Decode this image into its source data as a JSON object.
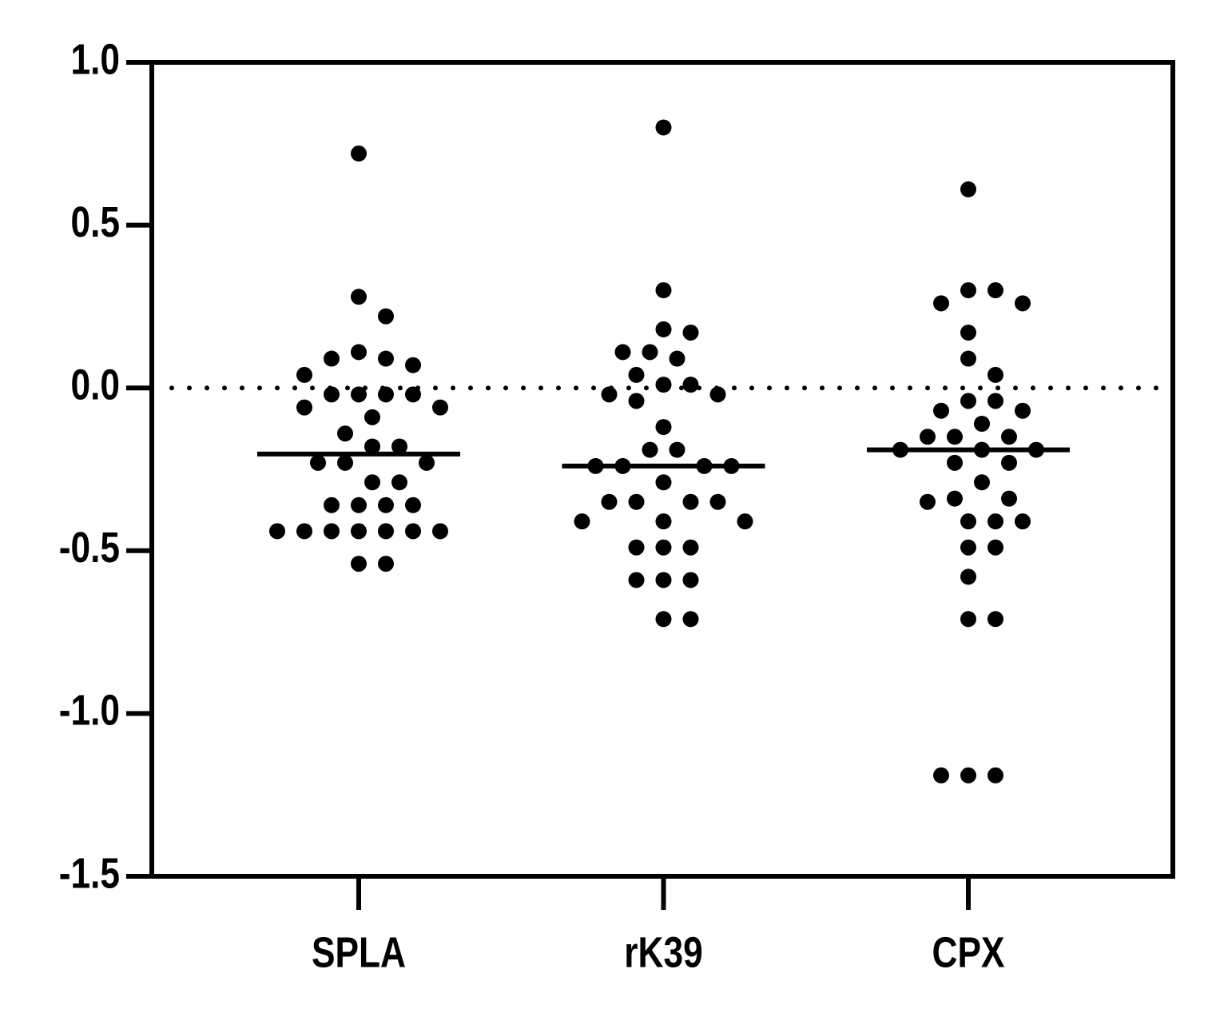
{
  "chart_data": {
    "type": "dotplot",
    "categories": [
      "SPLA",
      "rK39",
      "CPX"
    ],
    "values": [
      [
        0.72,
        0.28,
        0.22,
        0.11,
        0.09,
        0.09,
        0.07,
        0.04,
        -0.02,
        -0.02,
        -0.02,
        -0.02,
        -0.06,
        -0.06,
        -0.09,
        -0.14,
        -0.18,
        -0.18,
        -0.23,
        -0.23,
        -0.23,
        -0.29,
        -0.29,
        -0.36,
        -0.36,
        -0.36,
        -0.36,
        -0.44,
        -0.44,
        -0.44,
        -0.44,
        -0.44,
        -0.44,
        -0.44,
        -0.54,
        -0.54
      ],
      [
        0.8,
        0.3,
        0.18,
        0.17,
        0.11,
        0.11,
        0.09,
        0.04,
        0.01,
        0.01,
        -0.02,
        -0.02,
        -0.04,
        -0.12,
        -0.19,
        -0.19,
        -0.24,
        -0.24,
        -0.24,
        -0.24,
        -0.29,
        -0.35,
        -0.35,
        -0.35,
        -0.35,
        -0.41,
        -0.41,
        -0.41,
        -0.49,
        -0.49,
        -0.49,
        -0.59,
        -0.59,
        -0.59,
        -0.71,
        -0.71
      ],
      [
        0.61,
        0.3,
        0.3,
        0.26,
        0.26,
        0.17,
        0.09,
        0.04,
        -0.04,
        -0.04,
        -0.07,
        -0.07,
        -0.11,
        -0.15,
        -0.15,
        -0.15,
        -0.19,
        -0.19,
        -0.19,
        -0.23,
        -0.23,
        -0.29,
        -0.34,
        -0.34,
        -0.35,
        -0.41,
        -0.41,
        -0.41,
        -0.49,
        -0.49,
        -0.58,
        -0.71,
        -0.71,
        -1.19,
        -1.19,
        -1.19
      ]
    ],
    "medians": [
      -0.203,
      -0.24,
      -0.19
    ],
    "color": "#000000",
    "reference_line": 0,
    "ylim": [
      -1.5,
      1.0
    ],
    "yticks": [
      {
        "value": 1.0,
        "label": "1.0"
      },
      {
        "value": 0.5,
        "label": "0.5"
      },
      {
        "value": 0.0,
        "label": "0.0"
      },
      {
        "value": -0.5,
        "label": "-0.5"
      },
      {
        "value": -1.0,
        "label": "-1.0"
      },
      {
        "value": -1.5,
        "label": "-1.5"
      }
    ]
  }
}
